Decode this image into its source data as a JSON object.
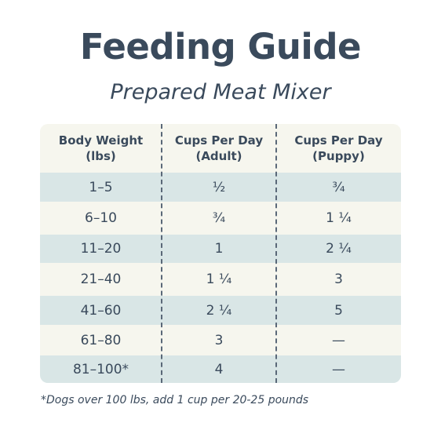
{
  "title": "Feeding Guide",
  "subtitle": "Prepared Meat Mixer",
  "table": {
    "headers": [
      {
        "line1": "Body Weight",
        "line2": "(lbs)"
      },
      {
        "line1": "Cups Per Day",
        "line2": "(Adult)"
      },
      {
        "line1": "Cups Per Day",
        "line2": "(Puppy)"
      }
    ],
    "rows": [
      {
        "weight": "1–5",
        "adult": "½",
        "puppy": "¾"
      },
      {
        "weight": "6–10",
        "adult": "¾",
        "puppy": "1 ¼"
      },
      {
        "weight": "11–20",
        "adult": "1",
        "puppy": "2 ¼"
      },
      {
        "weight": "21–40",
        "adult": "1 ¼",
        "puppy": "3"
      },
      {
        "weight": "41–60",
        "adult": "2 ¼",
        "puppy": "5"
      },
      {
        "weight": "61–80",
        "adult": "3",
        "puppy": "—"
      },
      {
        "weight": "81–100*",
        "adult": "4",
        "puppy": "—"
      }
    ]
  },
  "footnote": "*Dogs over 100 lbs, add 1 cup per 20-25 pounds",
  "colors": {
    "text": "#3a4a5c",
    "row_light": "#f6f6ee",
    "row_dark": "#d9e6e6"
  }
}
